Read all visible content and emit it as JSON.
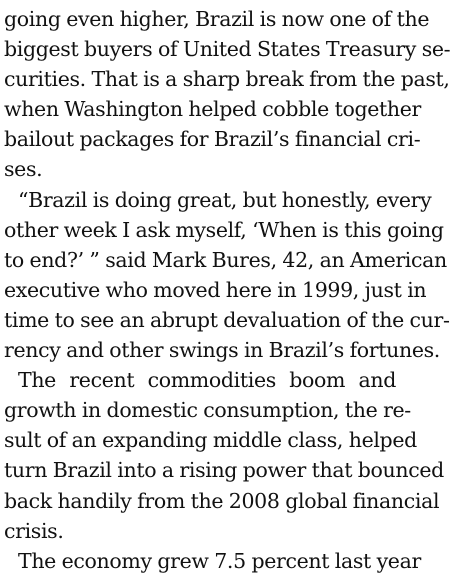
{
  "article": {
    "paragraphs": [
      {
        "indent": false,
        "lines": [
          "going even higher, Brazil is now one of the",
          "biggest buyers of United States Treasury se-",
          "curities. That is a sharp break from the past,",
          "when Washington helped cobble together",
          "bailout packages for Brazil’s financial cri-",
          "ses."
        ]
      },
      {
        "indent": true,
        "lines": [
          "“Brazil is doing great, but honestly, every",
          "other week I ask myself, ‘When is this going",
          "to end?’ ” said Mark Bures, 42, an American",
          "executive who moved here in 1999, just in",
          "time to see an abrupt devaluation of the cur-",
          "rency and other swings in Brazil’s fortunes."
        ]
      },
      {
        "indent": true,
        "lines": [
          "The recent commodities boom and",
          "growth in domestic consumption, the re-",
          "sult of an expanding middle class, helped",
          "turn Brazil into a rising power that bounced",
          "back handily from the 2008 global financial",
          "crisis."
        ]
      },
      {
        "indent": true,
        "lines": [
          "The economy grew 7.5 percent last year"
        ]
      }
    ]
  }
}
